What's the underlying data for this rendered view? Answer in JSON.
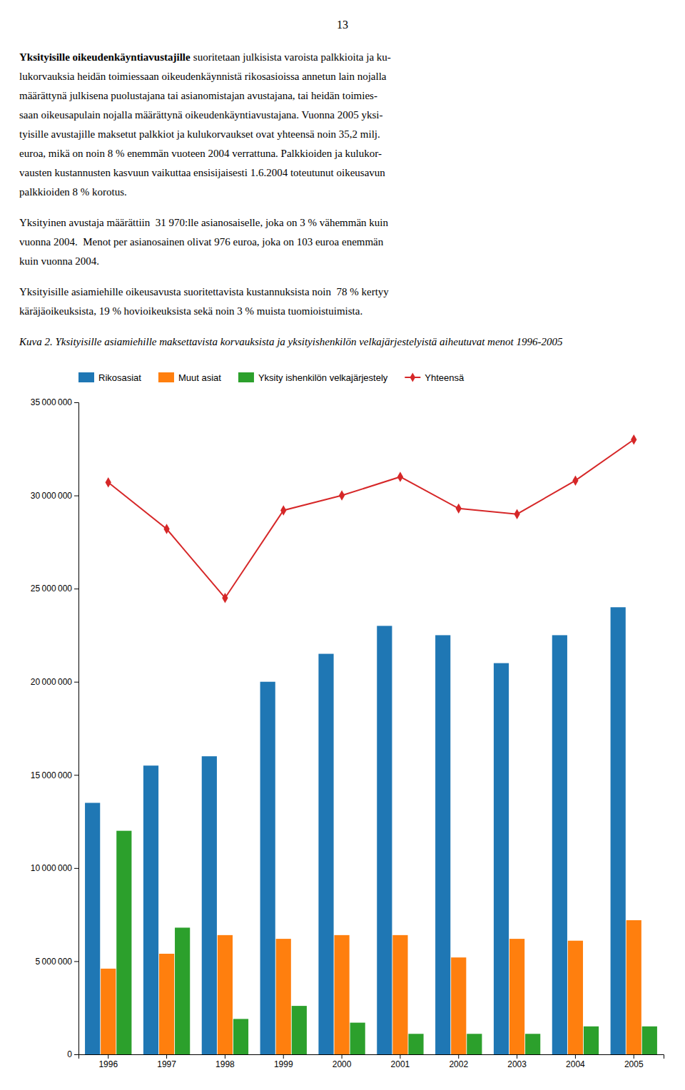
{
  "page_text": {
    "page_number": "13",
    "paragraphs": [
      {
        "lead": "Yksityisille oikeudenkäyntiavustajille",
        "lines": [
          "suoritetaan julkisista varoista palkkioita ja ku-",
          "lukorvauksia heidän toimiessaan oikeudenkäynnistä rikosasioissa annetun lain nojalla",
          "määrättynä julkisena puolustajana tai asianomistajan avustajana, tai heidän toimies-",
          "saan oikeusapulain nojalla määrättynä oikeudenkäyntiavustajana. Vuonna 2005 yksi-",
          "tyisille avustajille maksetut palkkiot ja kulukorvaukset ovat yhteensä noin 35,2 milj.",
          "euroa, mikä on noin 8 % enemmän vuoteen 2004 verrattuna. Palkkioiden ja kulukor-",
          "vausten kustannusten kasvuun vaikuttaa ensisijaisesti 1.6.2004 toteutunut oikeusavun",
          "palkkioiden 8 % korotus."
        ]
      },
      {
        "lines": [
          "Yksityinen avustaja määrättiin  31 970:lle asianosaiselle, joka on 3 % vähemmän kuin",
          "vuonna 2004.  Menot per asianosainen olivat 976 euroa, joka on 103 euroa enemmän",
          "kuin vuonna 2004."
        ]
      },
      {
        "lines": [
          "Yksityisille asiamiehille oikeusavusta suoritettavista kustannuksista noin  78 % kertyy",
          "käräjäoikeuksista, 19 % hovioikeuksista sekä noin 3 % muista tuomioistuimista."
        ]
      }
    ]
  },
  "chart_data": {
    "type": "bar",
    "title": "Kuva 2. Yksityisille asiamiehille maksettavista korvauksista ja yksityishenkilön velkajärjestelyistä aiheutuvat menot 1996-2005",
    "categories": [
      "1996",
      "1997",
      "1998",
      "1999",
      "2000",
      "2001",
      "2002",
      "2003",
      "2004",
      "2005"
    ],
    "series": [
      {
        "name": "Rikosasiat",
        "type": "bar",
        "values": [
          13500000,
          15500000,
          16000000,
          20000000,
          21500000,
          23000000,
          22500000,
          21000000,
          22500000,
          24000000
        ]
      },
      {
        "name": "Muut asiat",
        "type": "bar",
        "values": [
          4600000,
          5400000,
          6400000,
          6200000,
          6400000,
          6400000,
          5200000,
          6200000,
          6100000,
          7200000
        ]
      },
      {
        "name": "Yksity ishenkilön velkajärjestely",
        "type": "bar",
        "values": [
          12000000,
          6800000,
          1900000,
          2600000,
          1700000,
          1100000,
          1100000,
          1100000,
          1500000,
          1500000
        ]
      },
      {
        "name": "Yhteensä",
        "type": "line",
        "marker": "diamond",
        "values": [
          30700000,
          28200000,
          24500000,
          29200000,
          30000000,
          31000000,
          29300000,
          29000000,
          30800000,
          33000000
        ]
      }
    ],
    "ylim": [
      0,
      35000000
    ],
    "yticks": [
      0,
      {
        "value": 5000000,
        "label": "5 000 000"
      },
      {
        "value": 10000000,
        "label": "10 000 000"
      },
      {
        "value": 15000000,
        "label": "15 000 000"
      },
      {
        "value": 20000000,
        "label": "20 000 000"
      },
      {
        "value": 25000000,
        "label": "25 000 000"
      },
      {
        "value": 30000000,
        "label": "30 000 000"
      },
      {
        "value": 35000000,
        "label": "35 000 000"
      }
    ],
    "grid": false,
    "legend": "top"
  }
}
